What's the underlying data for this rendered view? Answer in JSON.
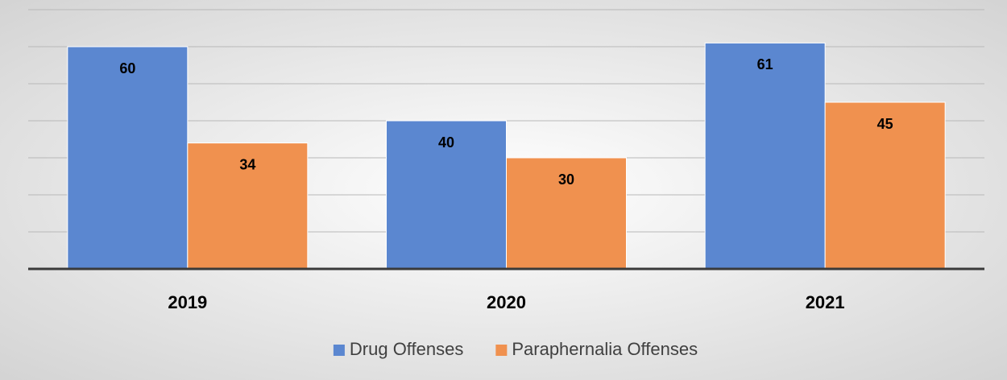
{
  "chart_data": {
    "type": "bar",
    "categories": [
      "2019",
      "2020",
      "2021"
    ],
    "series": [
      {
        "name": "Drug Offenses",
        "color": "#5b87d0",
        "values": [
          60,
          40,
          61
        ]
      },
      {
        "name": "Paraphernalia Offenses",
        "color": "#f0914f",
        "values": [
          34,
          30,
          45
        ]
      }
    ],
    "ylim": [
      0,
      70
    ],
    "yticks": [
      0,
      10,
      20,
      30,
      40,
      50,
      60,
      70
    ],
    "grid": true,
    "legend": "bottom"
  }
}
